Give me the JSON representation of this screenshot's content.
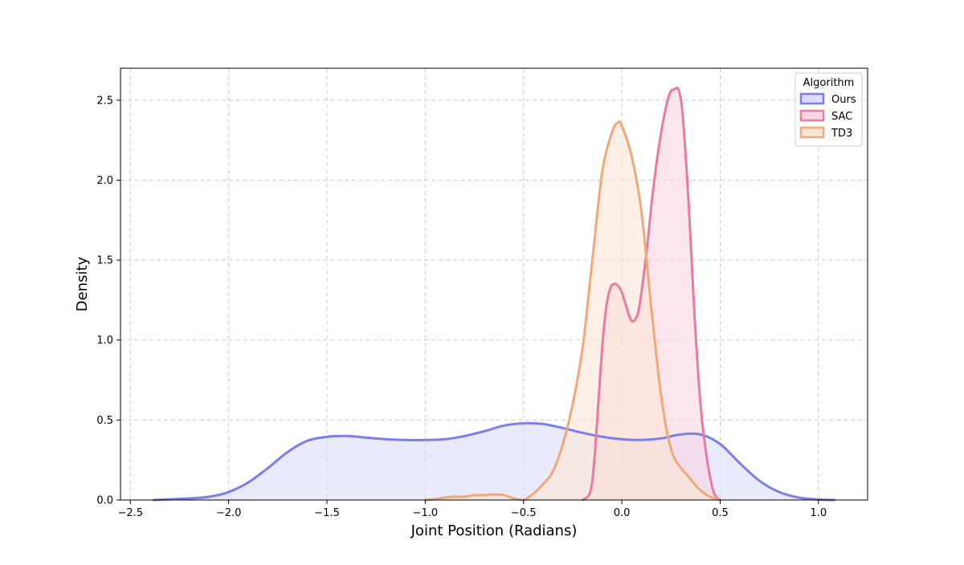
{
  "chart_data": {
    "type": "area",
    "title": "",
    "xlabel": "Joint Position (Radians)",
    "ylabel": "Density",
    "xlim": [
      -2.55,
      1.25
    ],
    "ylim": [
      0,
      2.7
    ],
    "x_ticks": [
      -2.5,
      -2.0,
      -1.5,
      -1.0,
      -0.5,
      0.0,
      0.5,
      1.0
    ],
    "x_tick_labels": [
      "−2.5",
      "−2.0",
      "−1.5",
      "−1.0",
      "−0.5",
      "0.0",
      "0.5",
      "1.0"
    ],
    "y_ticks": [
      0.0,
      0.5,
      1.0,
      1.5,
      2.0,
      2.5
    ],
    "y_tick_labels": [
      "0.0",
      "0.5",
      "1.0",
      "1.5",
      "2.0",
      "2.5"
    ],
    "grid": true,
    "legend": {
      "title": "Algorithm",
      "placement": "top-right"
    },
    "series": [
      {
        "name": "Ours",
        "color": "#7a7fef",
        "fill": "#dcdcfb",
        "x": [
          -2.38,
          -2.2,
          -2.1,
          -2.0,
          -1.9,
          -1.8,
          -1.7,
          -1.6,
          -1.5,
          -1.4,
          -1.3,
          -1.2,
          -1.1,
          -1.0,
          -0.9,
          -0.8,
          -0.7,
          -0.6,
          -0.5,
          -0.4,
          -0.3,
          -0.2,
          -0.1,
          0.0,
          0.1,
          0.2,
          0.3,
          0.4,
          0.5,
          0.6,
          0.7,
          0.8,
          0.9,
          1.0,
          1.08
        ],
        "y": [
          0.0,
          0.01,
          0.02,
          0.05,
          0.11,
          0.2,
          0.3,
          0.37,
          0.395,
          0.4,
          0.39,
          0.38,
          0.375,
          0.375,
          0.38,
          0.4,
          0.43,
          0.465,
          0.48,
          0.475,
          0.45,
          0.42,
          0.395,
          0.38,
          0.375,
          0.385,
          0.41,
          0.41,
          0.35,
          0.23,
          0.12,
          0.05,
          0.015,
          0.003,
          0.0
        ]
      },
      {
        "name": "SAC",
        "color": "#ea7aa2",
        "fill": "#f8d6e2",
        "x": [
          -0.2,
          -0.16,
          -0.14,
          -0.12,
          -0.1,
          -0.08,
          -0.06,
          -0.04,
          -0.02,
          0.0,
          0.02,
          0.05,
          0.08,
          0.1,
          0.13,
          0.16,
          0.2,
          0.24,
          0.27,
          0.29,
          0.31,
          0.34,
          0.37,
          0.4,
          0.43,
          0.46,
          0.48,
          0.5
        ],
        "y": [
          0.0,
          0.05,
          0.25,
          0.6,
          0.95,
          1.2,
          1.32,
          1.35,
          1.34,
          1.3,
          1.22,
          1.12,
          1.16,
          1.3,
          1.6,
          1.95,
          2.3,
          2.53,
          2.57,
          2.56,
          2.4,
          1.85,
          1.15,
          0.6,
          0.28,
          0.08,
          0.02,
          0.0
        ]
      },
      {
        "name": "TD3",
        "color": "#f0a878",
        "fill": "#fbe4d3",
        "x": [
          -1.0,
          -0.95,
          -0.9,
          -0.85,
          -0.8,
          -0.75,
          -0.7,
          -0.65,
          -0.6,
          -0.55,
          -0.5,
          -0.45,
          -0.4,
          -0.35,
          -0.3,
          -0.25,
          -0.2,
          -0.15,
          -0.1,
          -0.05,
          -0.02,
          0.0,
          0.05,
          0.1,
          0.15,
          0.2,
          0.25,
          0.3,
          0.33,
          0.37,
          0.4,
          0.45,
          0.5
        ],
        "y": [
          0.0,
          0.005,
          0.015,
          0.02,
          0.02,
          0.03,
          0.03,
          0.035,
          0.03,
          0.01,
          0.0,
          0.04,
          0.1,
          0.18,
          0.35,
          0.6,
          0.95,
          1.5,
          2.05,
          2.3,
          2.36,
          2.34,
          2.15,
          1.8,
          1.2,
          0.65,
          0.32,
          0.2,
          0.16,
          0.1,
          0.06,
          0.02,
          0.0
        ]
      }
    ]
  }
}
